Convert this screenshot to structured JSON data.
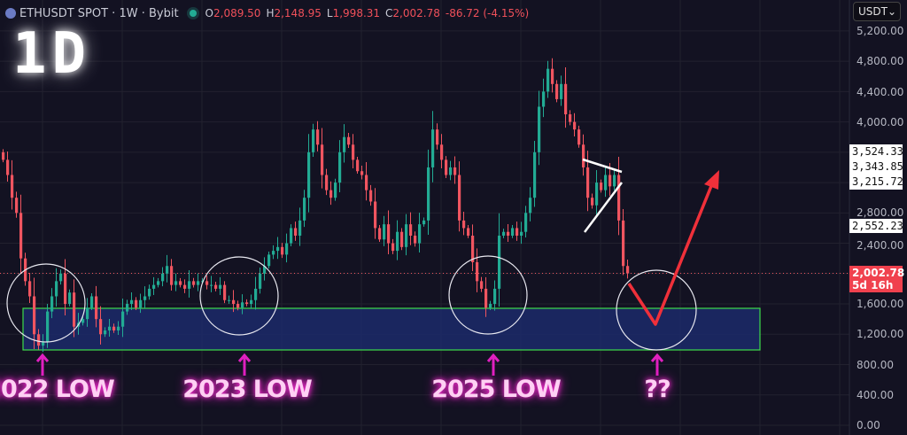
{
  "header": {
    "symbol": "ETHUSDT SPOT · 1W · Bybit",
    "timeframe_overlay": "1D",
    "open_label": "O",
    "open": "2,089.50",
    "high_label": "H",
    "high": "2,148.95",
    "low_label": "L",
    "low": "1,998.31",
    "close_label": "C",
    "close": "2,002.78",
    "change": "-86.72 (-4.15%)"
  },
  "currency_select": {
    "value": "USDT",
    "icon": "chevron-down-icon"
  },
  "colors": {
    "up": "#22ab94",
    "down": "#f05560",
    "background": "#131222",
    "zone_fill": "#1c2a6a",
    "zone_border": "#3ddc4a",
    "annotation": "#e020c0",
    "projection": "#f0303a"
  },
  "price_axis": {
    "ticks": [
      "5,200.00",
      "4,800.00",
      "4,400.00",
      "4,000.00",
      "2,800.00",
      "2,400.00",
      "1,600.00",
      "1,200.00",
      "800.00",
      "400.00",
      "0.00"
    ],
    "marked_levels": [
      "3,524.33",
      "3,343.85",
      "3,215.72",
      "2,552.23"
    ],
    "current_price": "2,002.78",
    "countdown": "5d 16h"
  },
  "annotations": {
    "labels": [
      "2022 LOW",
      "2023 LOW",
      "2025 LOW",
      "??"
    ]
  },
  "chart_data": {
    "type": "candlestick",
    "title": "ETHUSDT SPOT · 1W · Bybit",
    "ylim": [
      0,
      5200
    ],
    "grid": true,
    "first_open": 3600,
    "closes": [
      3500,
      3300,
      3000,
      2800,
      2200,
      1900,
      1700,
      1200,
      1050,
      1100,
      1500,
      1700,
      1900,
      2000,
      1600,
      1750,
      1300,
      1350,
      1400,
      1550,
      1700,
      1400,
      1200,
      1250,
      1300,
      1250,
      1300,
      1500,
      1600,
      1650,
      1550,
      1650,
      1700,
      1800,
      1850,
      1900,
      2000,
      2100,
      1850,
      1900,
      1850,
      1800,
      1900,
      1850,
      1900,
      1900,
      1850,
      1850,
      1800,
      1850,
      1650,
      1650,
      1600,
      1550,
      1620,
      1600,
      1650,
      1800,
      2000,
      2100,
      2250,
      2300,
      2350,
      2250,
      2400,
      2600,
      2500,
      2700,
      3000,
      3600,
      3900,
      3700,
      3300,
      3100,
      3000,
      3200,
      3600,
      3800,
      3700,
      3500,
      3350,
      3300,
      3100,
      2950,
      2600,
      2450,
      2650,
      2400,
      2300,
      2550,
      2350,
      2650,
      2500,
      2400,
      2650,
      2700,
      3400,
      3900,
      3700,
      3500,
      3300,
      3400,
      3300,
      2700,
      2600,
      2500,
      2150,
      1900,
      1800,
      1550,
      1600,
      1800,
      2500,
      2550,
      2500,
      2600,
      2500,
      2550,
      2800,
      3000,
      3600,
      4200,
      4400,
      4700,
      4500,
      4300,
      4500,
      4100,
      4000,
      3900,
      3700,
      3400,
      3000,
      2900,
      3200,
      3100,
      3300,
      3150,
      3300,
      2700,
      2100,
      2002.78
    ],
    "support_zone": [
      1000,
      1550
    ],
    "current_price": 2002.78
  }
}
